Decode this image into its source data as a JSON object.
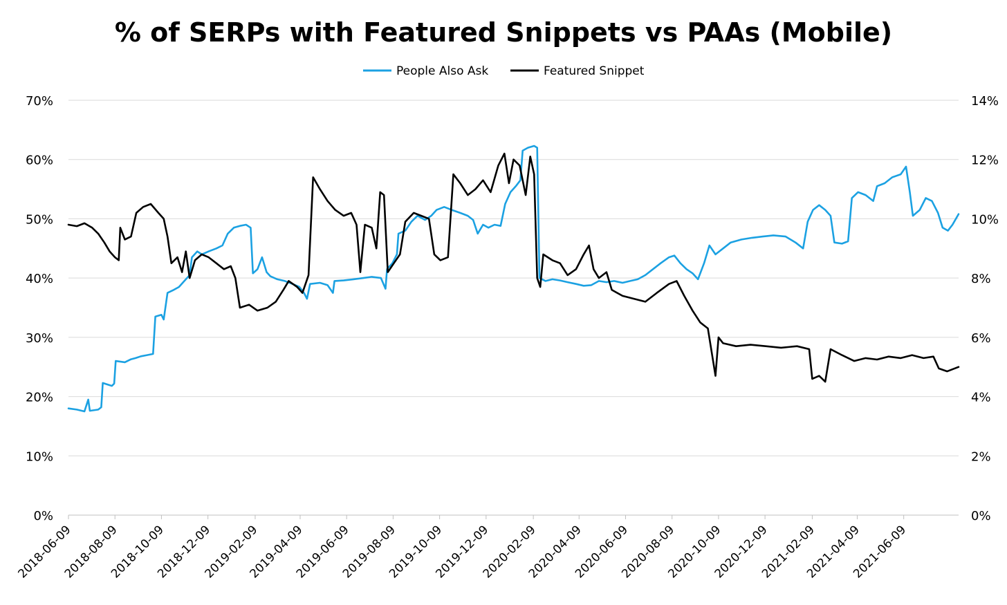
{
  "chart_data": {
    "type": "line",
    "title": "% of SERPs with Featured Snippets vs PAAs (Mobile)",
    "grid": true,
    "legend_position": "top-center",
    "y_left": {
      "min": 0,
      "max": 70,
      "step": 10,
      "tick_labels": [
        "0%",
        "10%",
        "20%",
        "30%",
        "40%",
        "50%",
        "60%",
        "70%"
      ]
    },
    "y_right": {
      "min": 0,
      "max": 14,
      "step": 2,
      "tick_labels": [
        "0%",
        "2%",
        "4%",
        "6%",
        "8%",
        "10%",
        "12%",
        "14%"
      ]
    },
    "x_axis": {
      "start": "2018-06-09",
      "end": "2021-08-20",
      "tick_labels": [
        "2018-06-09",
        "2018-08-09",
        "2018-10-09",
        "2018-12-09",
        "2019-02-09",
        "2019-04-09",
        "2019-06-09",
        "2019-08-09",
        "2019-10-09",
        "2019-12-09",
        "2020-02-09",
        "2020-04-09",
        "2020-06-09",
        "2020-08-09",
        "2020-10-09",
        "2020-12-09",
        "2021-02-09",
        "2021-04-09",
        "2021-06-09"
      ]
    },
    "series": [
      {
        "name": "People Also Ask",
        "color": "#1ba1e2",
        "axis": "left",
        "points": [
          [
            "2018-06-09",
            18
          ],
          [
            "2018-06-20",
            17.8
          ],
          [
            "2018-06-30",
            17.5
          ],
          [
            "2018-07-05",
            19.5
          ],
          [
            "2018-07-07",
            17.6
          ],
          [
            "2018-07-18",
            17.8
          ],
          [
            "2018-07-22",
            18.2
          ],
          [
            "2018-07-24",
            22.3
          ],
          [
            "2018-07-31",
            22.0
          ],
          [
            "2018-08-05",
            21.8
          ],
          [
            "2018-08-08",
            22.2
          ],
          [
            "2018-08-10",
            26.0
          ],
          [
            "2018-08-22",
            25.8
          ],
          [
            "2018-08-30",
            26.3
          ],
          [
            "2018-09-05",
            26.5
          ],
          [
            "2018-09-12",
            26.8
          ],
          [
            "2018-09-20",
            27.0
          ],
          [
            "2018-09-28",
            27.2
          ],
          [
            "2018-10-01",
            33.5
          ],
          [
            "2018-10-09",
            33.8
          ],
          [
            "2018-10-12",
            33.0
          ],
          [
            "2018-10-17",
            37.5
          ],
          [
            "2018-10-25",
            38.0
          ],
          [
            "2018-11-01",
            38.5
          ],
          [
            "2018-11-08",
            39.5
          ],
          [
            "2018-11-15",
            40.5
          ],
          [
            "2018-11-18",
            43.5
          ],
          [
            "2018-11-25",
            44.5
          ],
          [
            "2018-12-01",
            44.0
          ],
          [
            "2018-12-10",
            44.5
          ],
          [
            "2018-12-20",
            45.0
          ],
          [
            "2018-12-28",
            45.5
          ],
          [
            "2019-01-04",
            47.5
          ],
          [
            "2019-01-12",
            48.5
          ],
          [
            "2019-01-20",
            48.8
          ],
          [
            "2019-01-28",
            49.0
          ],
          [
            "2019-02-03",
            48.5
          ],
          [
            "2019-02-06",
            40.8
          ],
          [
            "2019-02-12",
            41.5
          ],
          [
            "2019-02-18",
            43.5
          ],
          [
            "2019-02-24",
            41.0
          ],
          [
            "2019-03-01",
            40.3
          ],
          [
            "2019-03-10",
            39.8
          ],
          [
            "2019-03-20",
            39.5
          ],
          [
            "2019-03-30",
            39.0
          ],
          [
            "2019-04-08",
            38.5
          ],
          [
            "2019-04-14",
            37.5
          ],
          [
            "2019-04-18",
            36.5
          ],
          [
            "2019-04-22",
            39.0
          ],
          [
            "2019-05-05",
            39.2
          ],
          [
            "2019-05-15",
            38.8
          ],
          [
            "2019-05-22",
            37.5
          ],
          [
            "2019-05-24",
            39.5
          ],
          [
            "2019-06-05",
            39.6
          ],
          [
            "2019-06-18",
            39.8
          ],
          [
            "2019-07-01",
            40.0
          ],
          [
            "2019-07-12",
            40.2
          ],
          [
            "2019-07-24",
            40.0
          ],
          [
            "2019-07-30",
            38.2
          ],
          [
            "2019-08-01",
            41.5
          ],
          [
            "2019-08-08",
            42.5
          ],
          [
            "2019-08-14",
            44.0
          ],
          [
            "2019-08-16",
            47.5
          ],
          [
            "2019-08-25",
            48.0
          ],
          [
            "2019-09-02",
            49.5
          ],
          [
            "2019-09-10",
            50.5
          ],
          [
            "2019-09-20",
            49.8
          ],
          [
            "2019-09-28",
            50.5
          ],
          [
            "2019-10-05",
            51.5
          ],
          [
            "2019-10-15",
            52.0
          ],
          [
            "2019-10-25",
            51.5
          ],
          [
            "2019-11-05",
            51.0
          ],
          [
            "2019-11-15",
            50.5
          ],
          [
            "2019-11-22",
            49.8
          ],
          [
            "2019-11-28",
            47.5
          ],
          [
            "2019-12-05",
            49.0
          ],
          [
            "2019-12-12",
            48.5
          ],
          [
            "2019-12-20",
            49.0
          ],
          [
            "2019-12-28",
            48.8
          ],
          [
            "2020-01-03",
            52.5
          ],
          [
            "2020-01-10",
            54.5
          ],
          [
            "2020-01-17",
            55.5
          ],
          [
            "2020-01-23",
            56.5
          ],
          [
            "2020-01-26",
            61.5
          ],
          [
            "2020-02-02",
            62.0
          ],
          [
            "2020-02-10",
            62.3
          ],
          [
            "2020-02-14",
            62.0
          ],
          [
            "2020-02-17",
            40.0
          ],
          [
            "2020-02-25",
            39.5
          ],
          [
            "2020-03-05",
            39.8
          ],
          [
            "2020-03-15",
            39.6
          ],
          [
            "2020-03-25",
            39.3
          ],
          [
            "2020-04-05",
            39.0
          ],
          [
            "2020-04-15",
            38.7
          ],
          [
            "2020-04-25",
            38.8
          ],
          [
            "2020-05-05",
            39.5
          ],
          [
            "2020-05-15",
            39.3
          ],
          [
            "2020-05-25",
            39.5
          ],
          [
            "2020-06-05",
            39.2
          ],
          [
            "2020-06-15",
            39.5
          ],
          [
            "2020-06-25",
            39.8
          ],
          [
            "2020-07-05",
            40.5
          ],
          [
            "2020-07-15",
            41.5
          ],
          [
            "2020-07-25",
            42.5
          ],
          [
            "2020-08-05",
            43.5
          ],
          [
            "2020-08-12",
            43.8
          ],
          [
            "2020-08-20",
            42.5
          ],
          [
            "2020-08-28",
            41.5
          ],
          [
            "2020-09-05",
            40.8
          ],
          [
            "2020-09-12",
            39.8
          ],
          [
            "2020-09-20",
            42.5
          ],
          [
            "2020-09-27",
            45.5
          ],
          [
            "2020-10-05",
            44.0
          ],
          [
            "2020-10-15",
            45.0
          ],
          [
            "2020-10-25",
            46.0
          ],
          [
            "2020-11-08",
            46.5
          ],
          [
            "2020-11-22",
            46.8
          ],
          [
            "2020-12-06",
            47.0
          ],
          [
            "2020-12-20",
            47.2
          ],
          [
            "2021-01-05",
            47.0
          ],
          [
            "2021-01-18",
            46.0
          ],
          [
            "2021-01-28",
            45.0
          ],
          [
            "2021-02-03",
            49.5
          ],
          [
            "2021-02-10",
            51.5
          ],
          [
            "2021-02-18",
            52.3
          ],
          [
            "2021-02-26",
            51.5
          ],
          [
            "2021-03-05",
            50.5
          ],
          [
            "2021-03-10",
            46.0
          ],
          [
            "2021-03-20",
            45.8
          ],
          [
            "2021-03-28",
            46.2
          ],
          [
            "2021-04-02",
            53.5
          ],
          [
            "2021-04-10",
            54.5
          ],
          [
            "2021-04-20",
            54.0
          ],
          [
            "2021-04-30",
            53.0
          ],
          [
            "2021-05-05",
            55.5
          ],
          [
            "2021-05-15",
            56.0
          ],
          [
            "2021-05-25",
            57.0
          ],
          [
            "2021-06-05",
            57.5
          ],
          [
            "2021-06-12",
            58.8
          ],
          [
            "2021-06-17",
            54.5
          ],
          [
            "2021-06-21",
            50.5
          ],
          [
            "2021-06-30",
            51.5
          ],
          [
            "2021-07-08",
            53.5
          ],
          [
            "2021-07-16",
            53.0
          ],
          [
            "2021-07-24",
            51.0
          ],
          [
            "2021-07-30",
            48.5
          ],
          [
            "2021-08-06",
            48.0
          ],
          [
            "2021-08-12",
            49.0
          ],
          [
            "2021-08-20",
            50.8
          ]
        ]
      },
      {
        "name": "Featured Snippet",
        "color": "#000000",
        "axis": "right",
        "points": [
          [
            "2018-06-09",
            9.8
          ],
          [
            "2018-06-20",
            9.75
          ],
          [
            "2018-06-30",
            9.85
          ],
          [
            "2018-07-10",
            9.7
          ],
          [
            "2018-07-18",
            9.5
          ],
          [
            "2018-07-26",
            9.2
          ],
          [
            "2018-08-02",
            8.9
          ],
          [
            "2018-08-09",
            8.7
          ],
          [
            "2018-08-14",
            8.6
          ],
          [
            "2018-08-16",
            9.7
          ],
          [
            "2018-08-22",
            9.3
          ],
          [
            "2018-08-30",
            9.4
          ],
          [
            "2018-09-06",
            10.2
          ],
          [
            "2018-09-15",
            10.4
          ],
          [
            "2018-09-25",
            10.5
          ],
          [
            "2018-10-05",
            10.2
          ],
          [
            "2018-10-12",
            10.0
          ],
          [
            "2018-10-17",
            9.4
          ],
          [
            "2018-10-22",
            8.5
          ],
          [
            "2018-10-30",
            8.7
          ],
          [
            "2018-11-05",
            8.2
          ],
          [
            "2018-11-10",
            8.9
          ],
          [
            "2018-11-15",
            8.0
          ],
          [
            "2018-11-22",
            8.6
          ],
          [
            "2018-12-01",
            8.8
          ],
          [
            "2018-12-10",
            8.7
          ],
          [
            "2018-12-20",
            8.5
          ],
          [
            "2018-12-30",
            8.3
          ],
          [
            "2019-01-08",
            8.4
          ],
          [
            "2019-01-14",
            8.0
          ],
          [
            "2019-01-20",
            7.0
          ],
          [
            "2019-02-01",
            7.1
          ],
          [
            "2019-02-12",
            6.9
          ],
          [
            "2019-02-25",
            7.0
          ],
          [
            "2019-03-08",
            7.2
          ],
          [
            "2019-03-18",
            7.6
          ],
          [
            "2019-03-25",
            7.9
          ],
          [
            "2019-04-05",
            7.7
          ],
          [
            "2019-04-12",
            7.5
          ],
          [
            "2019-04-20",
            8.1
          ],
          [
            "2019-04-26",
            11.4
          ],
          [
            "2019-05-05",
            11.0
          ],
          [
            "2019-05-15",
            10.6
          ],
          [
            "2019-05-25",
            10.3
          ],
          [
            "2019-06-05",
            10.1
          ],
          [
            "2019-06-15",
            10.2
          ],
          [
            "2019-06-22",
            9.8
          ],
          [
            "2019-06-27",
            8.2
          ],
          [
            "2019-07-03",
            9.8
          ],
          [
            "2019-07-12",
            9.7
          ],
          [
            "2019-07-18",
            9.0
          ],
          [
            "2019-07-23",
            10.9
          ],
          [
            "2019-07-28",
            10.8
          ],
          [
            "2019-08-02",
            8.2
          ],
          [
            "2019-08-10",
            8.5
          ],
          [
            "2019-08-18",
            8.8
          ],
          [
            "2019-08-25",
            9.9
          ],
          [
            "2019-09-05",
            10.2
          ],
          [
            "2019-09-15",
            10.1
          ],
          [
            "2019-09-25",
            10.0
          ],
          [
            "2019-10-02",
            8.8
          ],
          [
            "2019-10-10",
            8.6
          ],
          [
            "2019-10-20",
            8.7
          ],
          [
            "2019-10-27",
            11.5
          ],
          [
            "2019-11-05",
            11.2
          ],
          [
            "2019-11-15",
            10.8
          ],
          [
            "2019-11-25",
            11.0
          ],
          [
            "2019-12-05",
            11.3
          ],
          [
            "2019-12-15",
            10.9
          ],
          [
            "2019-12-25",
            11.8
          ],
          [
            "2020-01-02",
            12.2
          ],
          [
            "2020-01-08",
            11.2
          ],
          [
            "2020-01-14",
            12.0
          ],
          [
            "2020-01-22",
            11.8
          ],
          [
            "2020-01-30",
            10.8
          ],
          [
            "2020-02-05",
            12.1
          ],
          [
            "2020-02-10",
            11.5
          ],
          [
            "2020-02-14",
            8.0
          ],
          [
            "2020-02-18",
            7.7
          ],
          [
            "2020-02-22",
            8.8
          ],
          [
            "2020-03-05",
            8.6
          ],
          [
            "2020-03-15",
            8.5
          ],
          [
            "2020-03-25",
            8.1
          ],
          [
            "2020-04-05",
            8.3
          ],
          [
            "2020-04-15",
            8.8
          ],
          [
            "2020-04-22",
            9.1
          ],
          [
            "2020-04-28",
            8.3
          ],
          [
            "2020-05-05",
            8.0
          ],
          [
            "2020-05-15",
            8.2
          ],
          [
            "2020-05-22",
            7.6
          ],
          [
            "2020-06-05",
            7.4
          ],
          [
            "2020-06-20",
            7.3
          ],
          [
            "2020-07-05",
            7.2
          ],
          [
            "2020-07-20",
            7.5
          ],
          [
            "2020-08-05",
            7.8
          ],
          [
            "2020-08-15",
            7.9
          ],
          [
            "2020-08-25",
            7.4
          ],
          [
            "2020-09-05",
            6.9
          ],
          [
            "2020-09-15",
            6.5
          ],
          [
            "2020-09-25",
            6.3
          ],
          [
            "2020-10-05",
            4.7
          ],
          [
            "2020-10-09",
            6.0
          ],
          [
            "2020-10-15",
            5.8
          ],
          [
            "2020-11-01",
            5.7
          ],
          [
            "2020-11-20",
            5.75
          ],
          [
            "2020-12-10",
            5.7
          ],
          [
            "2020-12-30",
            5.65
          ],
          [
            "2021-01-20",
            5.7
          ],
          [
            "2021-02-05",
            5.6
          ],
          [
            "2021-02-09",
            4.6
          ],
          [
            "2021-02-18",
            4.7
          ],
          [
            "2021-02-26",
            4.5
          ],
          [
            "2021-03-05",
            5.6
          ],
          [
            "2021-03-20",
            5.4
          ],
          [
            "2021-04-05",
            5.2
          ],
          [
            "2021-04-20",
            5.3
          ],
          [
            "2021-05-05",
            5.25
          ],
          [
            "2021-05-20",
            5.35
          ],
          [
            "2021-06-05",
            5.3
          ],
          [
            "2021-06-20",
            5.4
          ],
          [
            "2021-07-05",
            5.3
          ],
          [
            "2021-07-18",
            5.35
          ],
          [
            "2021-07-25",
            4.95
          ],
          [
            "2021-08-05",
            4.85
          ],
          [
            "2021-08-20",
            5.0
          ]
        ]
      }
    ]
  }
}
